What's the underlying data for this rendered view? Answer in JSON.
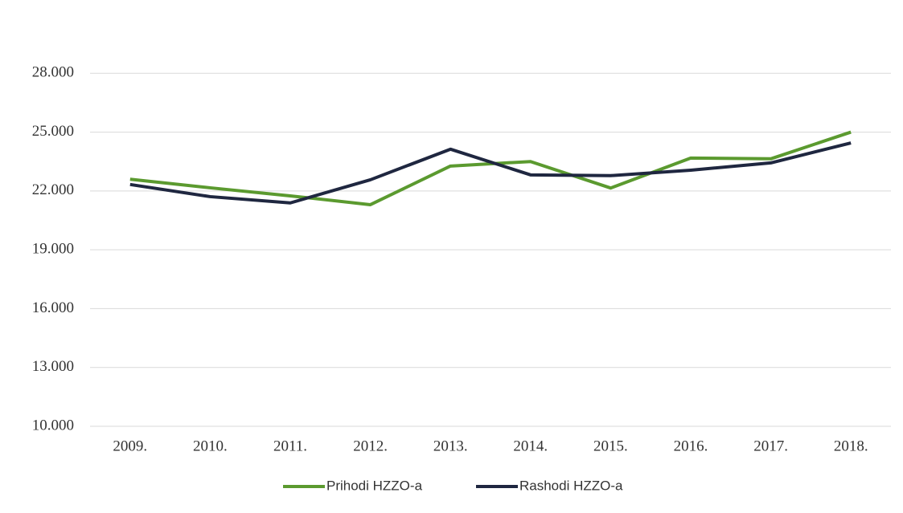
{
  "chart_data": {
    "type": "line",
    "categories": [
      "2009.",
      "2010.",
      "2011.",
      "2012.",
      "2013.",
      "2014.",
      "2015.",
      "2016.",
      "2017.",
      "2018."
    ],
    "series": [
      {
        "name": "Prihodi HZZO-a",
        "color": "#5b9a2f",
        "values": [
          22600,
          22160,
          21750,
          21300,
          23270,
          23500,
          22150,
          23680,
          23640,
          25000
        ]
      },
      {
        "name": "Rashodi HZZO-a",
        "color": "#1f2740",
        "values": [
          22330,
          21710,
          21390,
          22570,
          24130,
          22820,
          22780,
          23060,
          23430,
          24450
        ]
      }
    ],
    "ylim": [
      10000,
      31000
    ],
    "yticks": [
      {
        "value": 10000,
        "label": "10.000"
      },
      {
        "value": 13000,
        "label": "13.000"
      },
      {
        "value": 16000,
        "label": "16.000"
      },
      {
        "value": 19000,
        "label": "19.000"
      },
      {
        "value": 22000,
        "label": "22.000"
      },
      {
        "value": 25000,
        "label": "25.000"
      },
      {
        "value": 28000,
        "label": "28.000"
      }
    ],
    "grid": true,
    "legend": "bottom"
  }
}
